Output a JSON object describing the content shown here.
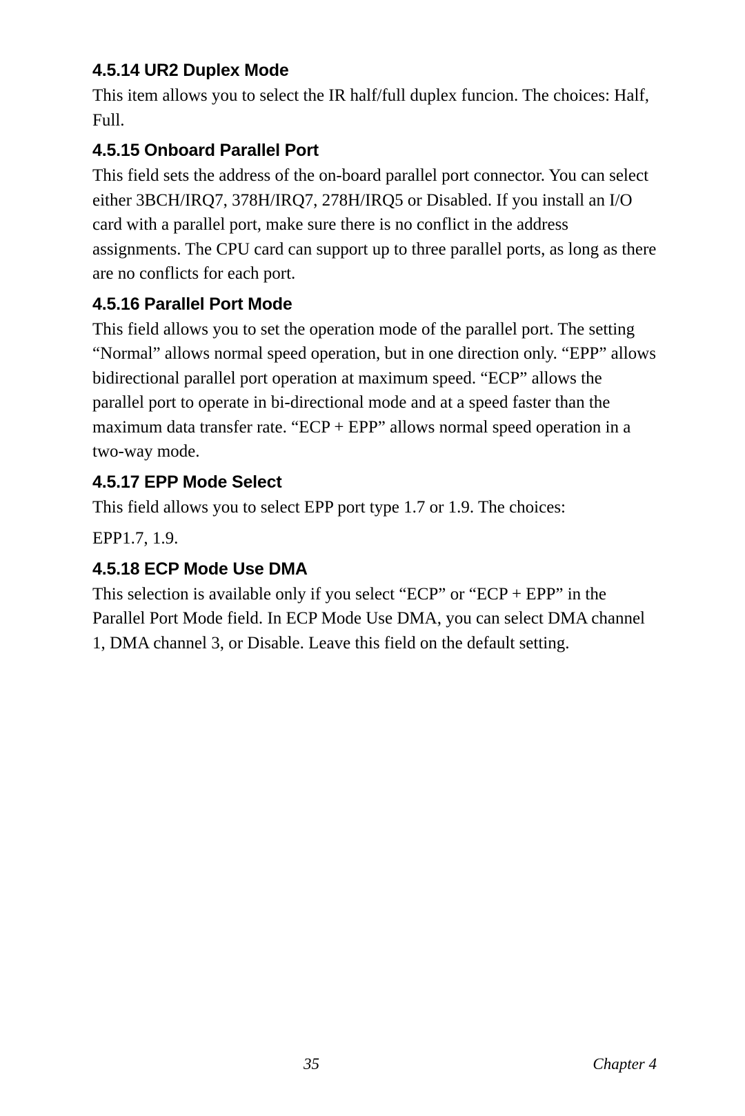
{
  "sections": {
    "s14": {
      "heading": "4.5.14 UR2 Duplex Mode",
      "body": "This item allows you to select the IR half/full duplex funcion. The choices: Half, Full."
    },
    "s15": {
      "heading": "4.5.15 Onboard Parallel Port",
      "body": "This field sets the address of the on-board parallel port connector. You can select either 3BCH/IRQ7, 378H/IRQ7, 278H/IRQ5 or Disabled. If you install an I/O card with a parallel port, make sure there is no conflict in the address assignments. The CPU card can support up to three parallel ports, as long as there are no conflicts for each port."
    },
    "s16": {
      "heading": "4.5.16 Parallel Port Mode",
      "body": "This field allows you to set the operation mode of the parallel port. The setting “Normal” allows normal speed operation, but in one direction only. “EPP” allows bidirectional parallel port operation at maximum speed. “ECP” allows the parallel port to operate in bi-directional mode and at a speed faster than the maximum data transfer rate. “ECP + EPP” allows normal speed operation in a two-way mode."
    },
    "s17": {
      "heading": "4.5.17 EPP Mode Select",
      "body1": "This field allows you to select EPP port type 1.7 or 1.9. The choices:",
      "body2": "EPP1.7, 1.9."
    },
    "s18": {
      "heading": "4.5.18 ECP Mode Use DMA",
      "body": "This selection is available only if you select “ECP” or “ECP + EPP” in the Parallel Port Mode field. In ECP Mode Use DMA, you can select DMA channel 1, DMA channel 3, or Disable. Leave this field on the default setting."
    }
  },
  "footer": {
    "page": "35",
    "chapter": "Chapter 4"
  },
  "style": {
    "heading_font": "Arial",
    "heading_weight": "bold",
    "heading_size_pt": 19,
    "body_font": "Times New Roman",
    "body_size_pt": 19,
    "text_color": "#000000",
    "background_color": "#ffffff"
  }
}
